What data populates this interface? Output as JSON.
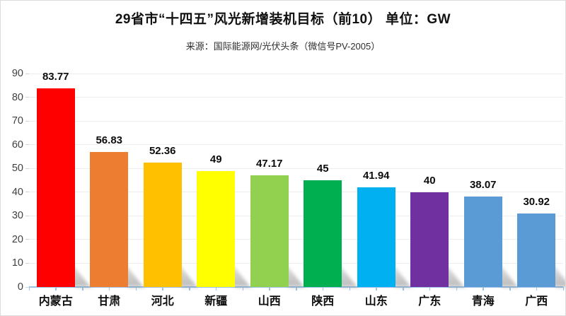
{
  "chart": {
    "title": "29省市“十四五”风光新增装机目标（前10） 单位：GW",
    "subtitle": "来源：国际能源网/光伏头条（微信号PV-2005）"
  },
  "chart_data": {
    "type": "bar",
    "title": "29省市“十四五”风光新增装机目标（前10） 单位：GW",
    "subtitle": "来源：国际能源网/光伏头条（微信号PV-2005）",
    "unit": "GW",
    "categories": [
      "内蒙古",
      "甘肃",
      "河北",
      "新疆",
      "山西",
      "陕西",
      "山东",
      "广东",
      "青海",
      "广西"
    ],
    "values": [
      83.77,
      56.83,
      52.36,
      49,
      47.17,
      45,
      41.94,
      40,
      38.07,
      30.92
    ],
    "value_labels": [
      "83.77",
      "56.83",
      "52.36",
      "49",
      "47.17",
      "45",
      "41.94",
      "40",
      "38.07",
      "30.92"
    ],
    "bar_colors": [
      "#FF0000",
      "#ED7D31",
      "#FFC000",
      "#FFFF00",
      "#92D050",
      "#00B050",
      "#00B0F0",
      "#7030A0",
      "#5B9BD5",
      "#5B9BD5"
    ],
    "xlabel": "",
    "ylabel": "",
    "ylim": [
      0,
      90
    ],
    "yticks": [
      0,
      10,
      20,
      30,
      40,
      50,
      60,
      70,
      80,
      90
    ],
    "grid": true,
    "legend": false,
    "gridline_color": "#ededed",
    "axis_color": "#9dc3e6",
    "ytick_mark_color": "#d2d2d2",
    "bar_shadow": true
  }
}
